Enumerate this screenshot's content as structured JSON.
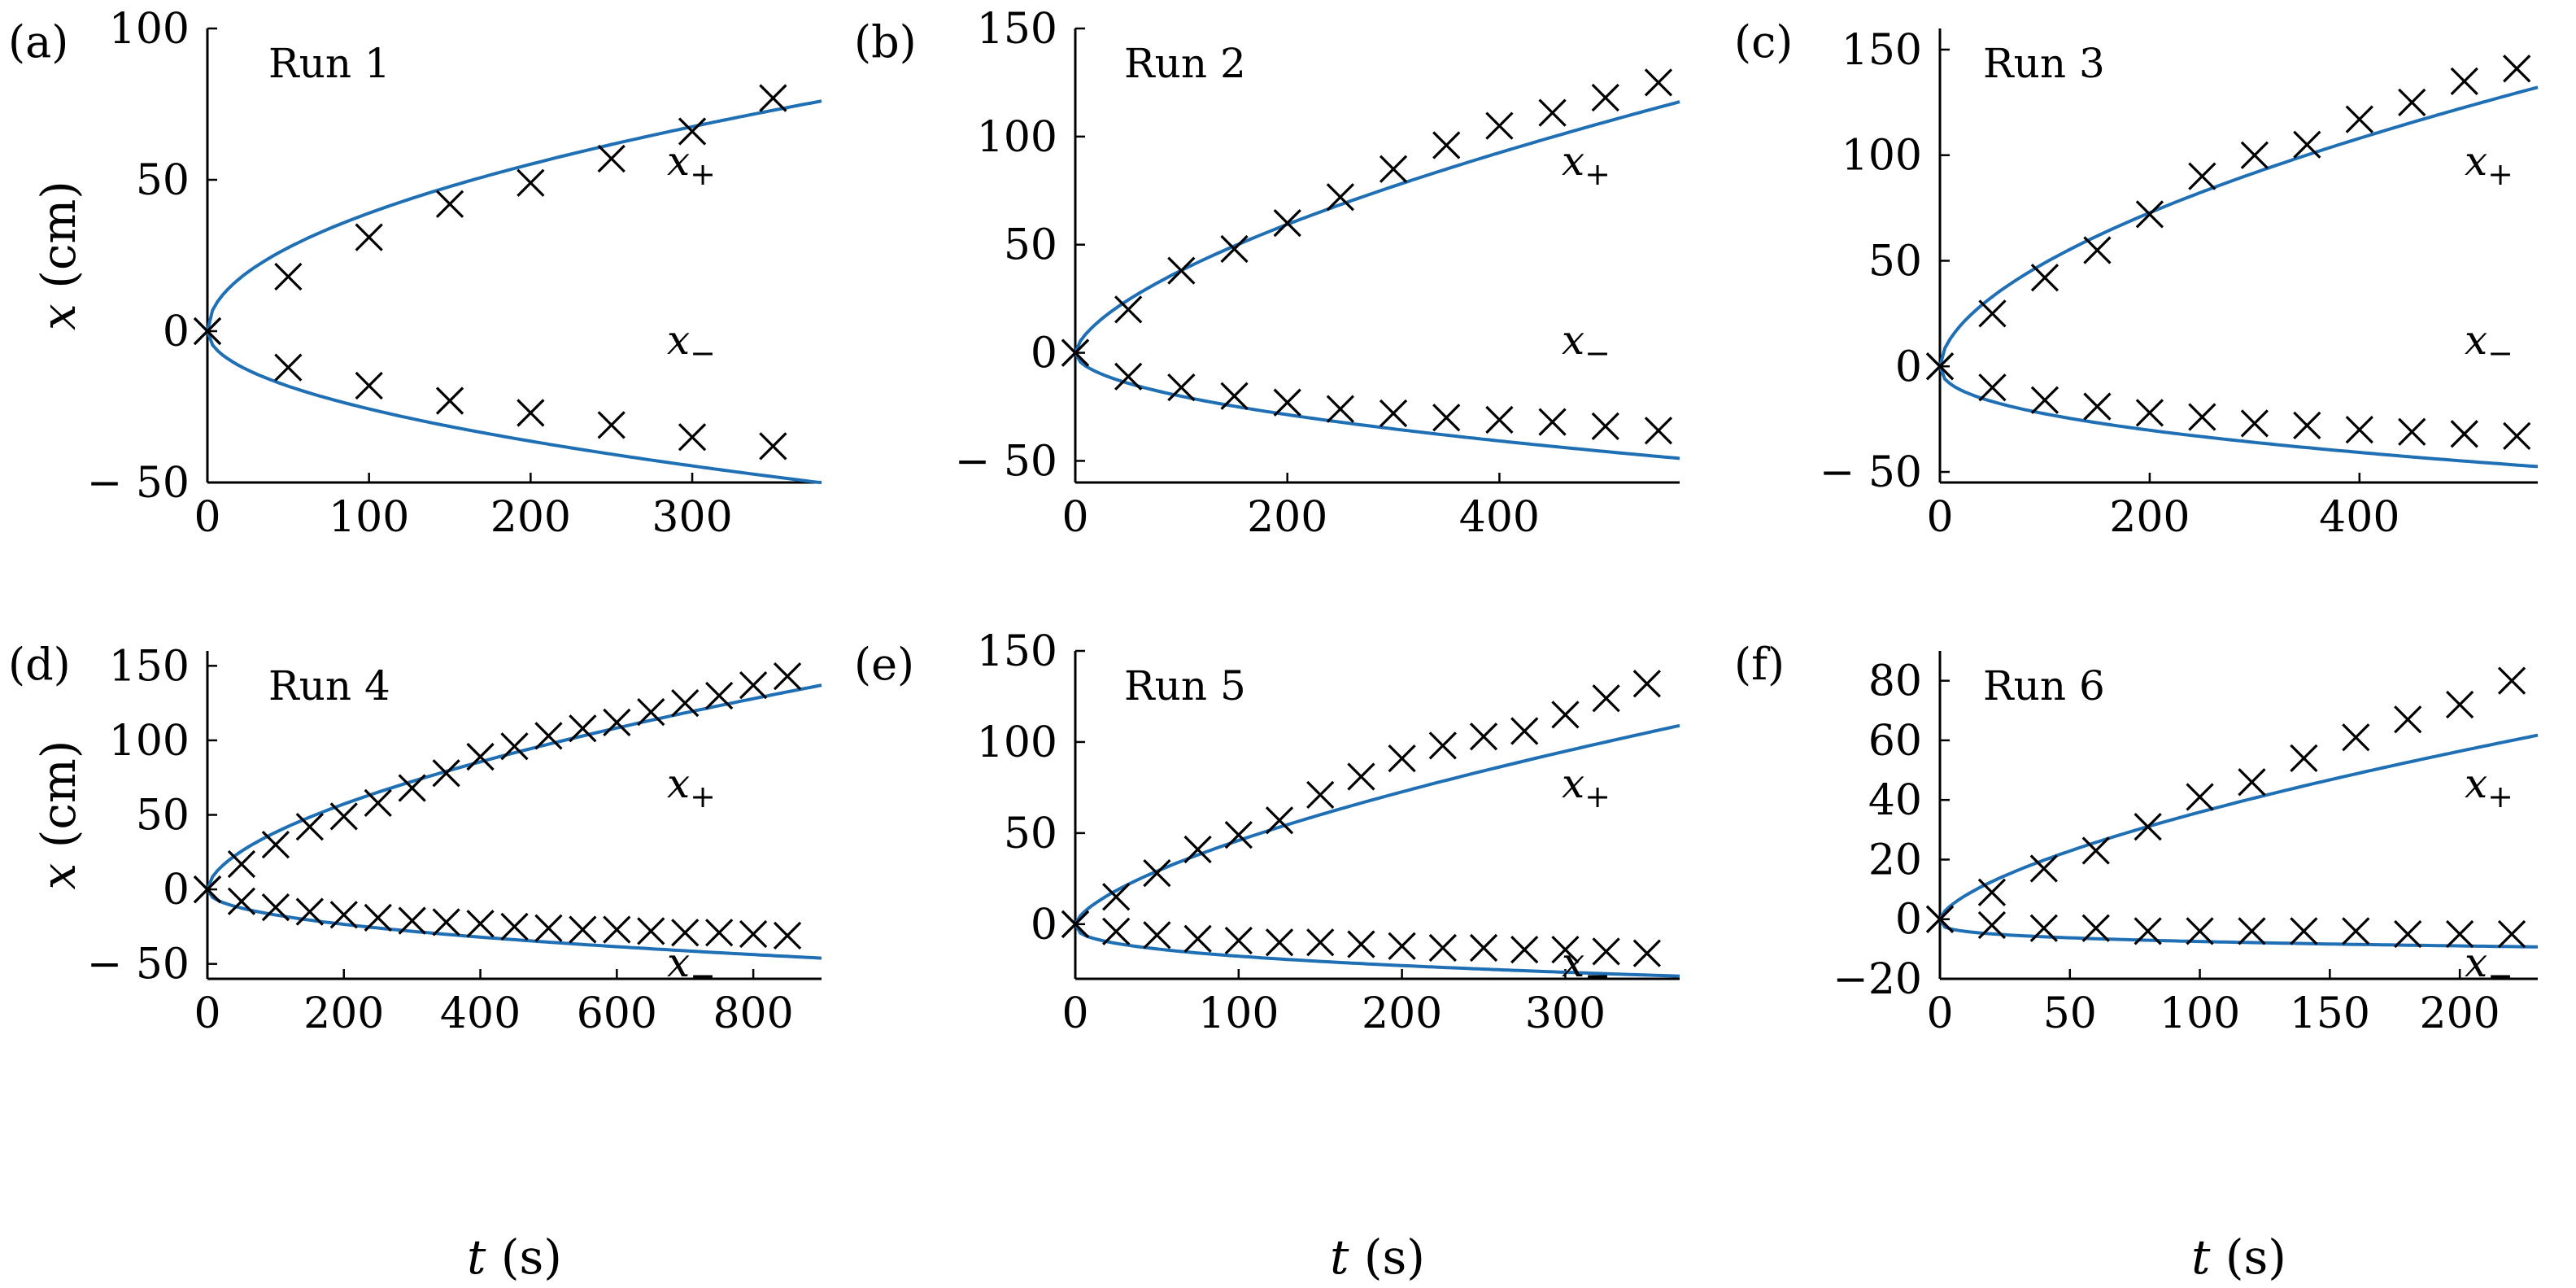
{
  "figure": {
    "x_axis_label_var": "t",
    "x_axis_label_unit": " (s)",
    "y_axis_label_var": "x",
    "y_axis_label_unit": " (cm)",
    "plus_label_var": "x",
    "plus_label_sub": "+",
    "minus_label_var": "x",
    "minus_label_sub": "−"
  },
  "colors": {
    "model_curve": "#1f6fb5",
    "markers": "#000000"
  },
  "chart_data": [
    {
      "type": "scatter",
      "panel": "(a)",
      "title": "Run 1",
      "xlabel": "t (s)",
      "ylabel": "x (cm)",
      "xlim": [
        0,
        380
      ],
      "ylim": [
        -50,
        100
      ],
      "xticks": [
        0,
        100,
        200,
        300
      ],
      "yticks": [
        -50,
        0,
        50,
        100
      ],
      "ytick_labels": [
        "− 50",
        "0",
        "50",
        "100"
      ],
      "model": {
        "a_plus": 3.9,
        "p_plus": 0.5,
        "a_minus": -2.57,
        "p_minus": 0.5
      },
      "series": [
        {
          "name": "x+",
          "x": [
            0,
            50,
            100,
            150,
            200,
            250,
            300,
            350
          ],
          "y": [
            0,
            18,
            31,
            42,
            49,
            57,
            66,
            77
          ]
        },
        {
          "name": "x−",
          "x": [
            0,
            50,
            100,
            150,
            200,
            250,
            300,
            350
          ],
          "y": [
            0,
            -12,
            -18,
            -23,
            -27,
            -31,
            -35,
            -38
          ]
        }
      ]
    },
    {
      "type": "scatter",
      "panel": "(b)",
      "title": "Run 2",
      "xlabel": "t (s)",
      "ylabel": "",
      "xlim": [
        0,
        570
      ],
      "ylim": [
        -60,
        150
      ],
      "xticks": [
        0,
        200,
        400
      ],
      "yticks": [
        -50,
        0,
        50,
        100,
        150
      ],
      "ytick_labels": [
        "− 50",
        "0",
        "50",
        "100",
        "150"
      ],
      "model": {
        "a_plus": 2.0,
        "p_plus": 0.64,
        "a_minus": -1.92,
        "p_minus": 0.51
      },
      "series": [
        {
          "name": "x+",
          "x": [
            0,
            50,
            100,
            150,
            200,
            250,
            300,
            350,
            400,
            450,
            500,
            550
          ],
          "y": [
            0,
            20,
            38,
            48,
            60,
            72,
            85,
            96,
            105,
            111,
            118,
            125
          ]
        },
        {
          "name": "x−",
          "x": [
            0,
            50,
            100,
            150,
            200,
            250,
            300,
            350,
            400,
            450,
            500,
            550
          ],
          "y": [
            0,
            -11,
            -16,
            -20,
            -23,
            -26,
            -28,
            -30,
            -31,
            -32,
            -34,
            -36
          ]
        }
      ]
    },
    {
      "type": "scatter",
      "panel": "(c)",
      "title": "Run 3",
      "xlabel": "t (s)",
      "ylabel": "",
      "xlim": [
        0,
        570
      ],
      "ylim": [
        -55,
        160
      ],
      "xticks": [
        0,
        200,
        400
      ],
      "yticks": [
        -50,
        0,
        50,
        100,
        150
      ],
      "ytick_labels": [
        "− 50",
        "0",
        "50",
        "100",
        "150"
      ],
      "model": {
        "a_plus": 3.55,
        "p_plus": 0.57,
        "a_minus": -3.1,
        "p_minus": 0.43
      },
      "series": [
        {
          "name": "x+",
          "x": [
            0,
            50,
            100,
            150,
            200,
            250,
            300,
            350,
            400,
            450,
            500,
            550
          ],
          "y": [
            0,
            25,
            42,
            55,
            72,
            90,
            100,
            105,
            117,
            125,
            135,
            141
          ]
        },
        {
          "name": "x−",
          "x": [
            0,
            50,
            100,
            150,
            200,
            250,
            300,
            350,
            400,
            450,
            500,
            550
          ],
          "y": [
            0,
            -10,
            -16,
            -19,
            -22,
            -24,
            -27,
            -28,
            -30,
            -31,
            -32,
            -33
          ]
        }
      ]
    },
    {
      "type": "scatter",
      "panel": "(d)",
      "title": "Run 4",
      "xlabel": "t (s)",
      "ylabel": "x (cm)",
      "xlim": [
        0,
        900
      ],
      "ylim": [
        -60,
        160
      ],
      "xticks": [
        0,
        200,
        400,
        600,
        800
      ],
      "yticks": [
        -50,
        0,
        50,
        100,
        150
      ],
      "ytick_labels": [
        "− 50",
        "0",
        "50",
        "100",
        "150"
      ],
      "model": {
        "a_plus": 2.65,
        "p_plus": 0.58,
        "a_minus": -2.16,
        "p_minus": 0.45
      },
      "series": [
        {
          "name": "x+",
          "x": [
            0,
            50,
            100,
            150,
            200,
            250,
            300,
            350,
            400,
            450,
            500,
            550,
            600,
            650,
            700,
            750,
            800,
            850
          ],
          "y": [
            0,
            17,
            30,
            42,
            49,
            58,
            68,
            78,
            89,
            96,
            103,
            108,
            112,
            119,
            125,
            130,
            137,
            143
          ]
        },
        {
          "name": "x−",
          "x": [
            0,
            50,
            100,
            150,
            200,
            250,
            300,
            350,
            400,
            450,
            500,
            550,
            600,
            650,
            700,
            750,
            800,
            850
          ],
          "y": [
            0,
            -8,
            -12,
            -15,
            -17,
            -19,
            -21,
            -22,
            -23,
            -25,
            -26,
            -27,
            -27,
            -28,
            -29,
            -29,
            -30,
            -31
          ]
        }
      ]
    },
    {
      "type": "scatter",
      "panel": "(e)",
      "title": "Run 5",
      "xlabel": "t (s)",
      "ylabel": "",
      "xlim": [
        0,
        370
      ],
      "ylim": [
        -30,
        150
      ],
      "xticks": [
        0,
        100,
        200,
        300
      ],
      "yticks": [
        0,
        50,
        100,
        150
      ],
      "ytick_labels": [
        "0",
        "50",
        "100",
        "150"
      ],
      "model": {
        "a_plus": 2.2,
        "p_plus": 0.66,
        "a_minus": -3.2,
        "p_minus": 0.37
      },
      "series": [
        {
          "name": "x+",
          "x": [
            0,
            25,
            50,
            75,
            100,
            125,
            150,
            175,
            200,
            225,
            250,
            275,
            300,
            325,
            350
          ],
          "y": [
            0,
            15,
            28,
            41,
            49,
            57,
            71,
            81,
            91,
            98,
            103,
            106,
            115,
            124,
            132
          ]
        },
        {
          "name": "x−",
          "x": [
            0,
            25,
            50,
            75,
            100,
            125,
            150,
            175,
            200,
            225,
            250,
            275,
            300,
            325,
            350
          ],
          "y": [
            0,
            -4,
            -6,
            -8,
            -9,
            -10,
            -10,
            -11,
            -12,
            -13,
            -13,
            -14,
            -14,
            -15,
            -16
          ]
        }
      ]
    },
    {
      "type": "scatter",
      "panel": "(f)",
      "title": "Run 6",
      "xlabel": "t (s)",
      "ylabel": "",
      "xlim": [
        0,
        230
      ],
      "ylim": [
        -20,
        90
      ],
      "xticks": [
        0,
        50,
        100,
        150,
        200
      ],
      "yticks": [
        -20,
        0,
        20,
        40,
        60,
        80
      ],
      "ytick_labels": [
        "−20",
        "0",
        "20",
        "40",
        "60",
        "80"
      ],
      "model": {
        "a_plus": 1.8,
        "p_plus": 0.65,
        "a_minus": -2.26,
        "p_minus": 0.26
      },
      "series": [
        {
          "name": "x+",
          "x": [
            0,
            20,
            40,
            60,
            80,
            100,
            120,
            140,
            160,
            180,
            200,
            220
          ],
          "y": [
            0,
            9,
            17,
            23,
            31,
            41,
            46,
            54,
            61,
            67,
            72,
            80
          ]
        },
        {
          "name": "x−",
          "x": [
            0,
            20,
            40,
            60,
            80,
            100,
            120,
            140,
            160,
            180,
            200,
            220
          ],
          "y": [
            0,
            -2,
            -3,
            -3,
            -4,
            -4,
            -4,
            -4,
            -4,
            -5,
            -5,
            -5
          ]
        }
      ]
    }
  ]
}
